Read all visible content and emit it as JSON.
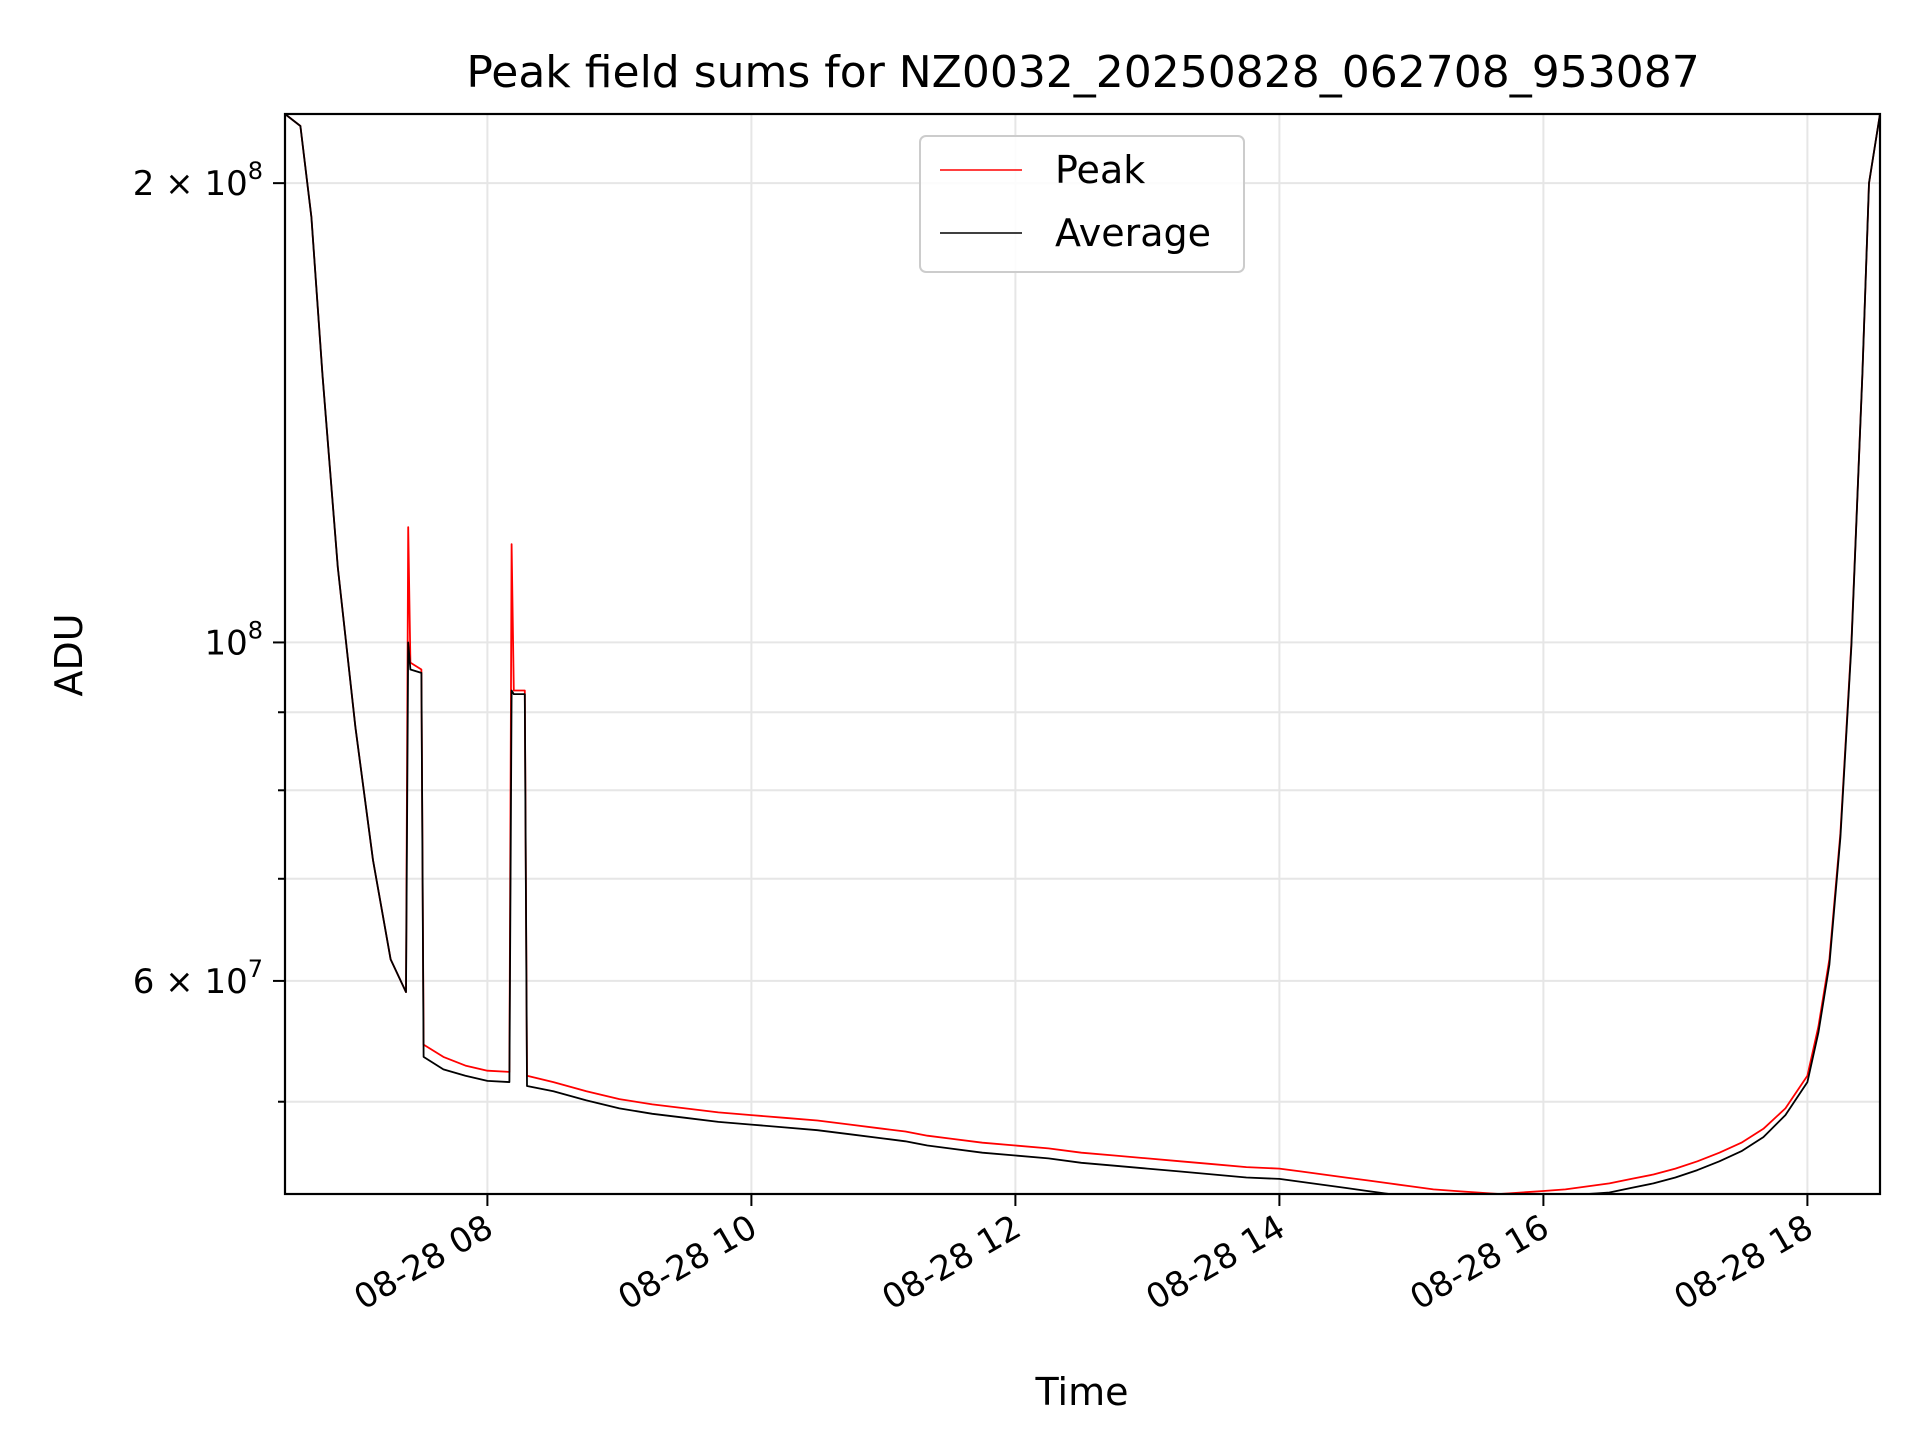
{
  "chart_data": {
    "type": "line",
    "title": "Peak field sums for NZ0032_20250828_062708_953087",
    "xlabel": "Time",
    "ylabel": "ADU",
    "y_scale": "log",
    "grid": true,
    "legend_position": "top-center",
    "xlim": [
      "2025-08-28T06:28",
      "2025-08-28T18:33"
    ],
    "ylim": [
      43500000,
      222000000
    ],
    "x_ticks": [
      {
        "value": "2025-08-28T08:00",
        "label": "08-28 08"
      },
      {
        "value": "2025-08-28T10:00",
        "label": "08-28 10"
      },
      {
        "value": "2025-08-28T12:00",
        "label": "08-28 12"
      },
      {
        "value": "2025-08-28T14:00",
        "label": "08-28 14"
      },
      {
        "value": "2025-08-28T16:00",
        "label": "08-28 16"
      },
      {
        "value": "2025-08-28T18:00",
        "label": "08-28 18"
      }
    ],
    "y_major_ticks": [
      {
        "value": 200000000,
        "base": "2 × 10",
        "exp": "8"
      },
      {
        "value": 100000000,
        "base": "10",
        "exp": "8"
      },
      {
        "value": 60000000,
        "base": "6 × 10",
        "exp": "7"
      }
    ],
    "y_minor_ticks": [
      50000000,
      70000000,
      80000000,
      90000000
    ],
    "series": [
      {
        "name": "Peak",
        "color": "#ff0000",
        "points": [
          [
            "2025-08-28T06:28",
            222000000
          ],
          [
            "2025-08-28T06:35",
            218000000
          ],
          [
            "2025-08-28T06:40",
            190000000
          ],
          [
            "2025-08-28T06:45",
            150000000
          ],
          [
            "2025-08-28T06:52",
            112000000
          ],
          [
            "2025-08-28T07:00",
            88000000
          ],
          [
            "2025-08-28T07:08",
            72000000
          ],
          [
            "2025-08-28T07:16",
            62000000
          ],
          [
            "2025-08-28T07:23",
            59000000
          ],
          [
            "2025-08-28T07:24",
            119000000
          ],
          [
            "2025-08-28T07:25",
            97000000
          ],
          [
            "2025-08-28T07:30",
            96000000
          ],
          [
            "2025-08-28T07:31",
            54500000
          ],
          [
            "2025-08-28T07:40",
            53500000
          ],
          [
            "2025-08-28T07:50",
            52800000
          ],
          [
            "2025-08-28T08:00",
            52400000
          ],
          [
            "2025-08-28T08:10",
            52300000
          ],
          [
            "2025-08-28T08:11",
            116000000
          ],
          [
            "2025-08-28T08:12",
            93000000
          ],
          [
            "2025-08-28T08:17",
            93000000
          ],
          [
            "2025-08-28T08:18",
            52000000
          ],
          [
            "2025-08-28T08:30",
            51500000
          ],
          [
            "2025-08-28T08:45",
            50800000
          ],
          [
            "2025-08-28T09:00",
            50200000
          ],
          [
            "2025-08-28T09:15",
            49800000
          ],
          [
            "2025-08-28T09:30",
            49500000
          ],
          [
            "2025-08-28T09:45",
            49200000
          ],
          [
            "2025-08-28T10:00",
            49000000
          ],
          [
            "2025-08-28T10:15",
            48800000
          ],
          [
            "2025-08-28T10:30",
            48600000
          ],
          [
            "2025-08-28T10:45",
            48300000
          ],
          [
            "2025-08-28T11:00",
            48000000
          ],
          [
            "2025-08-28T11:10",
            47800000
          ],
          [
            "2025-08-28T11:20",
            47500000
          ],
          [
            "2025-08-28T11:30",
            47300000
          ],
          [
            "2025-08-28T11:45",
            47000000
          ],
          [
            "2025-08-28T12:00",
            46800000
          ],
          [
            "2025-08-28T12:15",
            46600000
          ],
          [
            "2025-08-28T12:30",
            46300000
          ],
          [
            "2025-08-28T12:45",
            46100000
          ],
          [
            "2025-08-28T13:00",
            45900000
          ],
          [
            "2025-08-28T13:15",
            45700000
          ],
          [
            "2025-08-28T13:30",
            45500000
          ],
          [
            "2025-08-28T13:45",
            45300000
          ],
          [
            "2025-08-28T14:00",
            45200000
          ],
          [
            "2025-08-28T14:10",
            45000000
          ],
          [
            "2025-08-28T14:20",
            44800000
          ],
          [
            "2025-08-28T14:30",
            44600000
          ],
          [
            "2025-08-28T14:40",
            44400000
          ],
          [
            "2025-08-28T14:50",
            44200000
          ],
          [
            "2025-08-28T15:00",
            44000000
          ],
          [
            "2025-08-28T15:10",
            43800000
          ],
          [
            "2025-08-28T15:20",
            43700000
          ],
          [
            "2025-08-28T15:30",
            43600000
          ],
          [
            "2025-08-28T15:40",
            43500000
          ],
          [
            "2025-08-28T15:50",
            43600000
          ],
          [
            "2025-08-28T16:00",
            43700000
          ],
          [
            "2025-08-28T16:10",
            43800000
          ],
          [
            "2025-08-28T16:20",
            44000000
          ],
          [
            "2025-08-28T16:30",
            44200000
          ],
          [
            "2025-08-28T16:40",
            44500000
          ],
          [
            "2025-08-28T16:50",
            44800000
          ],
          [
            "2025-08-28T17:00",
            45200000
          ],
          [
            "2025-08-28T17:10",
            45700000
          ],
          [
            "2025-08-28T17:20",
            46300000
          ],
          [
            "2025-08-28T17:30",
            47000000
          ],
          [
            "2025-08-28T17:40",
            48000000
          ],
          [
            "2025-08-28T17:50",
            49500000
          ],
          [
            "2025-08-28T18:00",
            52000000
          ],
          [
            "2025-08-28T18:05",
            56000000
          ],
          [
            "2025-08-28T18:10",
            62000000
          ],
          [
            "2025-08-28T18:15",
            75000000
          ],
          [
            "2025-08-28T18:20",
            100000000
          ],
          [
            "2025-08-28T18:25",
            150000000
          ],
          [
            "2025-08-28T18:28",
            200000000
          ],
          [
            "2025-08-28T18:33",
            222000000
          ]
        ]
      },
      {
        "name": "Average",
        "color": "#000000",
        "points": [
          [
            "2025-08-28T06:28",
            222000000
          ],
          [
            "2025-08-28T06:35",
            218000000
          ],
          [
            "2025-08-28T06:40",
            190000000
          ],
          [
            "2025-08-28T06:45",
            150000000
          ],
          [
            "2025-08-28T06:52",
            112000000
          ],
          [
            "2025-08-28T07:00",
            88000000
          ],
          [
            "2025-08-28T07:08",
            72000000
          ],
          [
            "2025-08-28T07:16",
            62000000
          ],
          [
            "2025-08-28T07:23",
            59000000
          ],
          [
            "2025-08-28T07:24",
            100000000
          ],
          [
            "2025-08-28T07:25",
            96000000
          ],
          [
            "2025-08-28T07:30",
            95500000
          ],
          [
            "2025-08-28T07:31",
            53500000
          ],
          [
            "2025-08-28T07:40",
            52500000
          ],
          [
            "2025-08-28T07:50",
            52000000
          ],
          [
            "2025-08-28T08:00",
            51600000
          ],
          [
            "2025-08-28T08:10",
            51500000
          ],
          [
            "2025-08-28T08:11",
            93000000
          ],
          [
            "2025-08-28T08:12",
            92500000
          ],
          [
            "2025-08-28T08:17",
            92500000
          ],
          [
            "2025-08-28T08:18",
            51200000
          ],
          [
            "2025-08-28T08:30",
            50800000
          ],
          [
            "2025-08-28T08:45",
            50100000
          ],
          [
            "2025-08-28T09:00",
            49500000
          ],
          [
            "2025-08-28T09:15",
            49100000
          ],
          [
            "2025-08-28T09:30",
            48800000
          ],
          [
            "2025-08-28T09:45",
            48500000
          ],
          [
            "2025-08-28T10:00",
            48300000
          ],
          [
            "2025-08-28T10:15",
            48100000
          ],
          [
            "2025-08-28T10:30",
            47900000
          ],
          [
            "2025-08-28T10:45",
            47600000
          ],
          [
            "2025-08-28T11:00",
            47300000
          ],
          [
            "2025-08-28T11:10",
            47100000
          ],
          [
            "2025-08-28T11:20",
            46800000
          ],
          [
            "2025-08-28T11:30",
            46600000
          ],
          [
            "2025-08-28T11:45",
            46300000
          ],
          [
            "2025-08-28T12:00",
            46100000
          ],
          [
            "2025-08-28T12:15",
            45900000
          ],
          [
            "2025-08-28T12:30",
            45600000
          ],
          [
            "2025-08-28T12:45",
            45400000
          ],
          [
            "2025-08-28T13:00",
            45200000
          ],
          [
            "2025-08-28T13:15",
            45000000
          ],
          [
            "2025-08-28T13:30",
            44800000
          ],
          [
            "2025-08-28T13:45",
            44600000
          ],
          [
            "2025-08-28T14:00",
            44500000
          ],
          [
            "2025-08-28T14:10",
            44300000
          ],
          [
            "2025-08-28T14:20",
            44100000
          ],
          [
            "2025-08-28T14:30",
            43900000
          ],
          [
            "2025-08-28T14:40",
            43700000
          ],
          [
            "2025-08-28T14:50",
            43500000
          ],
          [
            "2025-08-28T15:00",
            43500000
          ],
          [
            "2025-08-28T15:10",
            43500000
          ],
          [
            "2025-08-28T15:20",
            43500000
          ],
          [
            "2025-08-28T15:30",
            43500000
          ],
          [
            "2025-08-28T15:40",
            43500000
          ],
          [
            "2025-08-28T15:50",
            43500000
          ],
          [
            "2025-08-28T16:00",
            43500000
          ],
          [
            "2025-08-28T16:10",
            43500000
          ],
          [
            "2025-08-28T16:20",
            43500000
          ],
          [
            "2025-08-28T16:30",
            43600000
          ],
          [
            "2025-08-28T16:40",
            43900000
          ],
          [
            "2025-08-28T16:50",
            44200000
          ],
          [
            "2025-08-28T17:00",
            44600000
          ],
          [
            "2025-08-28T17:10",
            45100000
          ],
          [
            "2025-08-28T17:20",
            45700000
          ],
          [
            "2025-08-28T17:30",
            46400000
          ],
          [
            "2025-08-28T17:40",
            47400000
          ],
          [
            "2025-08-28T17:50",
            49000000
          ],
          [
            "2025-08-28T18:00",
            51500000
          ],
          [
            "2025-08-28T18:05",
            55500000
          ],
          [
            "2025-08-28T18:10",
            61500000
          ],
          [
            "2025-08-28T18:15",
            74500000
          ],
          [
            "2025-08-28T18:20",
            99500000
          ],
          [
            "2025-08-28T18:25",
            150000000
          ],
          [
            "2025-08-28T18:28",
            200000000
          ],
          [
            "2025-08-28T18:33",
            222000000
          ]
        ]
      }
    ]
  }
}
